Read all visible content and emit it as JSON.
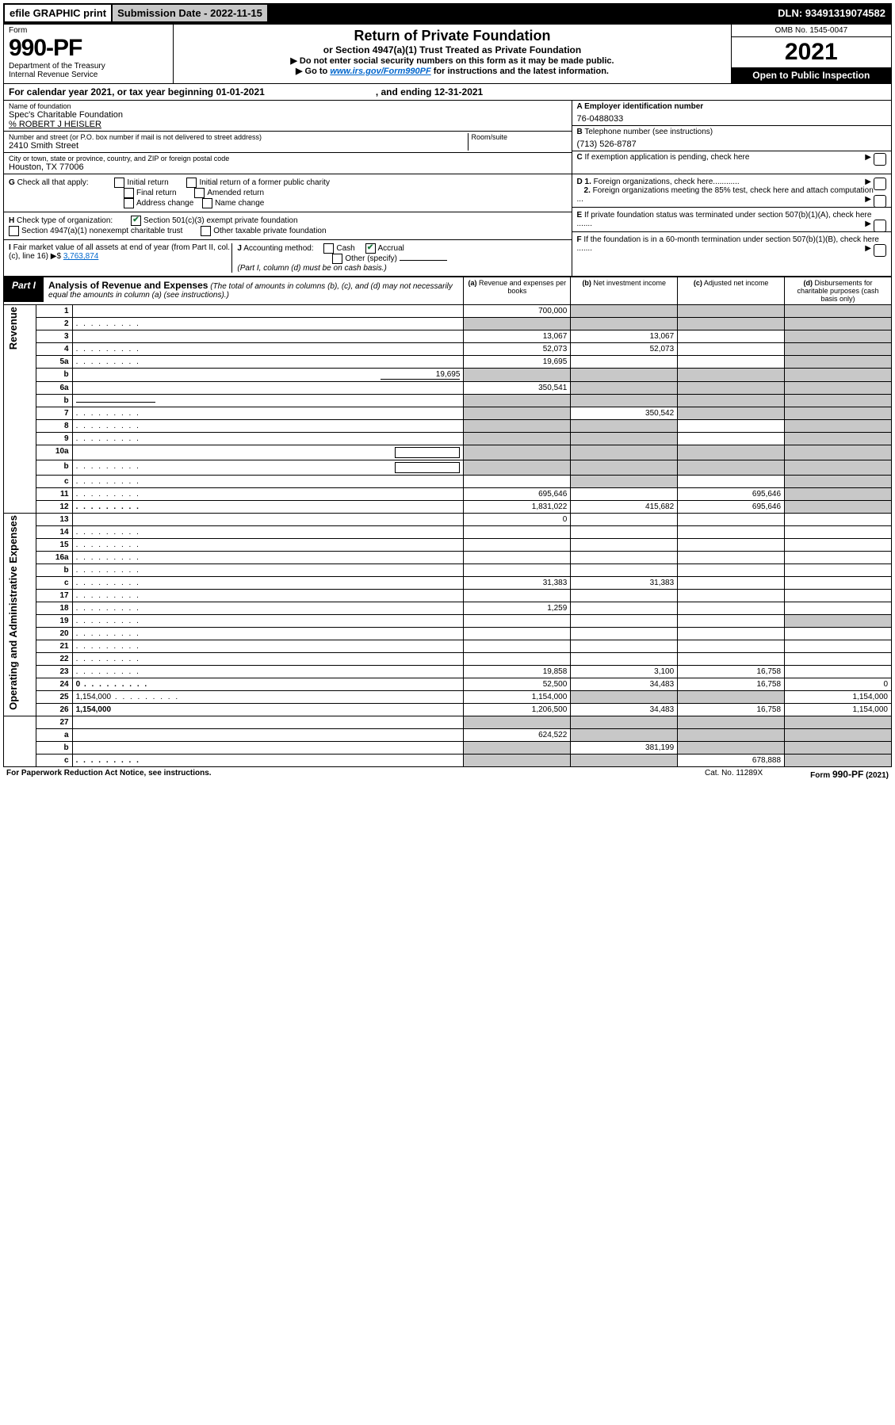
{
  "topbar": {
    "efile": "efile GRAPHIC print",
    "subdate_label": "Submission Date - 2022-11-15",
    "dln": "DLN: 93491319074582"
  },
  "header": {
    "form_label": "Form",
    "form_number": "990-PF",
    "dept1": "Department of the Treasury",
    "dept2": "Internal Revenue Service",
    "title": "Return of Private Foundation",
    "subtitle": "or Section 4947(a)(1) Trust Treated as Private Foundation",
    "instr1": "▶ Do not enter social security numbers on this form as it may be made public.",
    "instr2_pre": "▶ Go to ",
    "instr2_link": "www.irs.gov/Form990PF",
    "instr2_post": " for instructions and the latest information.",
    "omb": "OMB No. 1545-0047",
    "year": "2021",
    "open": "Open to Public Inspection"
  },
  "calyear": {
    "pre": "For calendar year 2021, or tax year beginning 01-01-2021",
    "end": ", and ending 12-31-2021"
  },
  "info": {
    "name_label": "Name of foundation",
    "name": "Spec's Charitable Foundation",
    "care_of": "% ROBERT J HEISLER",
    "addr_label": "Number and street (or P.O. box number if mail is not delivered to street address)",
    "addr": "2410 Smith Street",
    "room_label": "Room/suite",
    "city_label": "City or town, state or province, country, and ZIP or foreign postal code",
    "city": "Houston, TX  77006",
    "a_label": "A Employer identification number",
    "a_val": "76-0488033",
    "b_label": "B",
    "b_text": "Telephone number (see instructions)",
    "b_val": "(713) 526-8787",
    "c_label": "C",
    "c_text": "If exemption application is pending, check here",
    "d1": "D 1.",
    "d1_text": "Foreign organizations, check here............",
    "d2": "2.",
    "d2_text": "Foreign organizations meeting the 85% test, check here and attach computation ...",
    "e_label": "E",
    "e_text": "If private foundation status was terminated under section 507(b)(1)(A), check here .......",
    "f_label": "F",
    "f_text": "If the foundation is in a 60-month termination under section 507(b)(1)(B), check here ......."
  },
  "checks": {
    "g_label": "G",
    "g_text": "Check all that apply:",
    "g_opts": [
      "Initial return",
      "Initial return of a former public charity",
      "Final return",
      "Amended return",
      "Address change",
      "Name change"
    ],
    "h_label": "H",
    "h_text": "Check type of organization:",
    "h_opt1": "Section 501(c)(3) exempt private foundation",
    "h_opt2": "Section 4947(a)(1) nonexempt charitable trust",
    "h_opt3": "Other taxable private foundation",
    "i_label": "I",
    "i_text": "Fair market value of all assets at end of year (from Part II, col. (c), line 16)",
    "i_val": "3,763,874",
    "j_label": "J",
    "j_text": "Accounting method:",
    "j_cash": "Cash",
    "j_accrual": "Accrual",
    "j_other": "Other (specify)",
    "j_note": "(Part I, column (d) must be on cash basis.)"
  },
  "part1": {
    "label": "Part I",
    "title": "Analysis of Revenue and Expenses",
    "note": "(The total of amounts in columns (b), (c), and (d) may not necessarily equal the amounts in column (a) (see instructions).)",
    "col_a": "(a)",
    "col_a_t": "Revenue and expenses per books",
    "col_b": "(b)",
    "col_b_t": "Net investment income",
    "col_c": "(c)",
    "col_c_t": "Adjusted net income",
    "col_d": "(d)",
    "col_d_t": "Disbursements for charitable purposes (cash basis only)"
  },
  "sections": {
    "revenue": "Revenue",
    "opadmin": "Operating and Administrative Expenses"
  },
  "rows": [
    {
      "n": "1",
      "d": "",
      "a": "700,000",
      "b": "",
      "c": "",
      "shade_b": true,
      "shade_c": true,
      "shade_d": true
    },
    {
      "n": "2",
      "d": "",
      "a": "",
      "b": "",
      "c": "",
      "shade_a": true,
      "shade_b": true,
      "shade_c": true,
      "shade_d": true,
      "dots": true
    },
    {
      "n": "3",
      "d": "",
      "a": "13,067",
      "b": "13,067",
      "c": "",
      "shade_d": true
    },
    {
      "n": "4",
      "d": "",
      "a": "52,073",
      "b": "52,073",
      "c": "",
      "shade_d": true,
      "dots": true
    },
    {
      "n": "5a",
      "d": "",
      "a": "19,695",
      "b": "",
      "c": "",
      "shade_d": true,
      "dots": true
    },
    {
      "n": "b",
      "d": "",
      "a": "",
      "b": "",
      "c": "",
      "shade_a": true,
      "shade_b": true,
      "shade_c": true,
      "shade_d": true,
      "inline_val": "19,695"
    },
    {
      "n": "6a",
      "d": "",
      "a": "350,541",
      "b": "",
      "c": "",
      "shade_b": true,
      "shade_c": true,
      "shade_d": true
    },
    {
      "n": "b",
      "d": "",
      "a": "",
      "b": "",
      "c": "",
      "shade_a": true,
      "shade_b": true,
      "shade_c": true,
      "shade_d": true,
      "inline_line": true
    },
    {
      "n": "7",
      "d": "",
      "a": "",
      "b": "350,542",
      "c": "",
      "shade_a": true,
      "shade_c": true,
      "shade_d": true,
      "dots": true
    },
    {
      "n": "8",
      "d": "",
      "a": "",
      "b": "",
      "c": "",
      "shade_a": true,
      "shade_b": true,
      "shade_d": true,
      "dots": true
    },
    {
      "n": "9",
      "d": "",
      "a": "",
      "b": "",
      "c": "",
      "shade_a": true,
      "shade_b": true,
      "shade_d": true,
      "dots": true
    },
    {
      "n": "10a",
      "d": "",
      "a": "",
      "b": "",
      "c": "",
      "shade_a": true,
      "shade_b": true,
      "shade_c": true,
      "shade_d": true,
      "inline_box": true
    },
    {
      "n": "b",
      "d": "",
      "a": "",
      "b": "",
      "c": "",
      "shade_a": true,
      "shade_b": true,
      "shade_c": true,
      "shade_d": true,
      "dots": true,
      "inline_box": true
    },
    {
      "n": "c",
      "d": "",
      "a": "",
      "b": "",
      "c": "",
      "shade_b": true,
      "shade_d": true,
      "dots": true
    },
    {
      "n": "11",
      "d": "",
      "a": "695,646",
      "b": "",
      "c": "695,646",
      "shade_d": true,
      "dots": true
    },
    {
      "n": "12",
      "d": "",
      "a": "1,831,022",
      "b": "415,682",
      "c": "695,646",
      "bold": true,
      "shade_d": true,
      "dots": true
    }
  ],
  "rows2": [
    {
      "n": "13",
      "d": "",
      "a": "0",
      "b": "",
      "c": ""
    },
    {
      "n": "14",
      "d": "",
      "a": "",
      "b": "",
      "c": "",
      "dots": true
    },
    {
      "n": "15",
      "d": "",
      "a": "",
      "b": "",
      "c": "",
      "dots": true
    },
    {
      "n": "16a",
      "d": "",
      "a": "",
      "b": "",
      "c": "",
      "dots": true
    },
    {
      "n": "b",
      "d": "",
      "a": "",
      "b": "",
      "c": "",
      "dots": true
    },
    {
      "n": "c",
      "d": "",
      "a": "31,383",
      "b": "31,383",
      "c": "",
      "dots": true
    },
    {
      "n": "17",
      "d": "",
      "a": "",
      "b": "",
      "c": "",
      "dots": true
    },
    {
      "n": "18",
      "d": "",
      "a": "1,259",
      "b": "",
      "c": "",
      "dots": true
    },
    {
      "n": "19",
      "d": "",
      "a": "",
      "b": "",
      "c": "",
      "shade_d": true,
      "dots": true
    },
    {
      "n": "20",
      "d": "",
      "a": "",
      "b": "",
      "c": "",
      "dots": true
    },
    {
      "n": "21",
      "d": "",
      "a": "",
      "b": "",
      "c": "",
      "dots": true
    },
    {
      "n": "22",
      "d": "",
      "a": "",
      "b": "",
      "c": "",
      "dots": true
    },
    {
      "n": "23",
      "d": "",
      "a": "19,858",
      "b": "3,100",
      "c": "16,758",
      "dots": true
    },
    {
      "n": "24",
      "d": "0",
      "a": "52,500",
      "b": "34,483",
      "c": "16,758",
      "bold": true,
      "dots": true
    },
    {
      "n": "25",
      "d": "1,154,000",
      "a": "1,154,000",
      "b": "",
      "c": "",
      "shade_b": true,
      "shade_c": true,
      "dots": true
    },
    {
      "n": "26",
      "d": "1,154,000",
      "a": "1,206,500",
      "b": "34,483",
      "c": "16,758",
      "bold": true
    }
  ],
  "rows3": [
    {
      "n": "27",
      "d": "",
      "a": "",
      "b": "",
      "c": "",
      "shade_a": true,
      "shade_b": true,
      "shade_c": true,
      "shade_d": true
    },
    {
      "n": "a",
      "d": "",
      "a": "624,522",
      "b": "",
      "c": "",
      "bold": true,
      "shade_b": true,
      "shade_c": true,
      "shade_d": true
    },
    {
      "n": "b",
      "d": "",
      "a": "",
      "b": "381,199",
      "c": "",
      "bold": true,
      "shade_a": true,
      "shade_c": true,
      "shade_d": true
    },
    {
      "n": "c",
      "d": "",
      "a": "",
      "b": "",
      "c": "678,888",
      "bold": true,
      "shade_a": true,
      "shade_b": true,
      "shade_d": true,
      "dots": true
    }
  ],
  "footer": {
    "pra": "For Paperwork Reduction Act Notice, see instructions.",
    "cat": "Cat. No. 11289X",
    "form": "Form 990-PF (2021)"
  }
}
